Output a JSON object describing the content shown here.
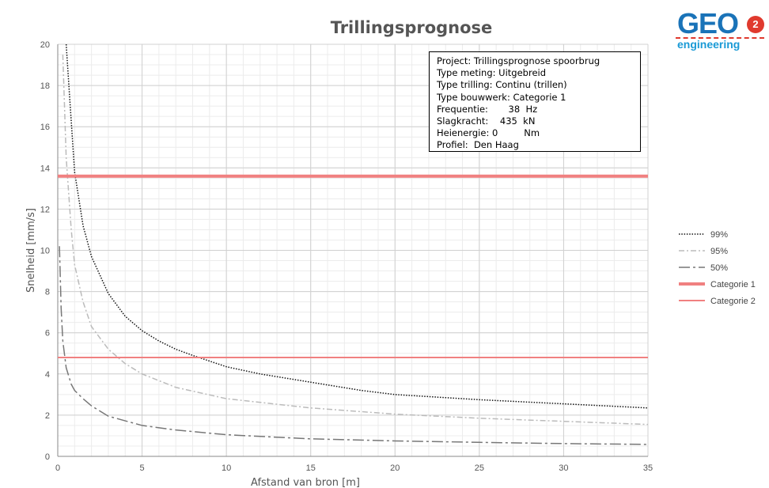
{
  "logo": {
    "brand": "GEO",
    "badge": "2",
    "sub": "engineering"
  },
  "info": {
    "rows": [
      {
        "label": "Project:",
        "value": "Trillingsprognose spoorbrug",
        "unit": ""
      },
      {
        "label": "Type meting:",
        "value": "Uitgebreid",
        "unit": ""
      },
      {
        "label": "Type trilling:",
        "value": "Continu (trillen)",
        "unit": ""
      },
      {
        "label": "Type bouwwerk:",
        "value": "Categorie 1",
        "unit": ""
      },
      {
        "label": "Frequentie:",
        "value": "38",
        "unit": "Hz"
      },
      {
        "label": "Slagkracht:",
        "value": "435",
        "unit": "kN"
      },
      {
        "label": "Heienergie:",
        "value": "0",
        "unit": "Nm"
      },
      {
        "label": "Profiel:",
        "value": "Den Haag",
        "unit": ""
      }
    ]
  },
  "chart_data": {
    "type": "line",
    "title": "Trillingsprognose",
    "xlabel": "Afstand van bron [m]",
    "ylabel": "Snelheid [mm/s]",
    "xlim": [
      0,
      35
    ],
    "ylim": [
      0,
      20
    ],
    "xticks": [
      0,
      5,
      10,
      15,
      20,
      25,
      30,
      35
    ],
    "yticks": [
      0,
      2,
      4,
      6,
      8,
      10,
      12,
      14,
      16,
      18,
      20
    ],
    "grid": true,
    "legend_position": "right",
    "series": [
      {
        "name": "99%",
        "color": "#111111",
        "dash": "dotted",
        "x": [
          0.5,
          0.7,
          1,
          1.5,
          2,
          3,
          4,
          5,
          6,
          7,
          8,
          10,
          12,
          15,
          18,
          20,
          25,
          30,
          35
        ],
        "y": [
          20,
          17.5,
          13.8,
          11.2,
          9.7,
          7.9,
          6.8,
          6.1,
          5.6,
          5.2,
          4.9,
          4.35,
          4.0,
          3.6,
          3.2,
          3.0,
          2.75,
          2.55,
          2.35
        ]
      },
      {
        "name": "95%",
        "color": "#bbbbbb",
        "dash": "dashdot",
        "x": [
          0.3,
          0.5,
          0.8,
          1,
          1.5,
          2,
          3,
          4,
          5,
          7,
          10,
          15,
          20,
          25,
          30,
          35
        ],
        "y": [
          19.5,
          14.5,
          11.0,
          9.3,
          7.5,
          6.3,
          5.2,
          4.5,
          4.0,
          3.35,
          2.8,
          2.35,
          2.05,
          1.85,
          1.7,
          1.55
        ]
      },
      {
        "name": "50%",
        "color": "#777777",
        "dash": "longdashdot",
        "x": [
          0.1,
          0.2,
          0.3,
          0.5,
          0.8,
          1,
          1.5,
          2,
          3,
          5,
          7,
          10,
          15,
          20,
          25,
          30,
          35
        ],
        "y": [
          10.2,
          7.2,
          5.6,
          4.3,
          3.5,
          3.2,
          2.8,
          2.45,
          1.95,
          1.5,
          1.28,
          1.05,
          0.85,
          0.75,
          0.68,
          0.62,
          0.58
        ]
      },
      {
        "name": "Categorie 1",
        "color": "#f08080",
        "dash": "solid",
        "width": 4,
        "x": [
          0,
          35
        ],
        "y": [
          13.6,
          13.6
        ]
      },
      {
        "name": "Categorie 2",
        "color": "#f08080",
        "dash": "solid",
        "width": 2,
        "x": [
          0,
          35
        ],
        "y": [
          4.8,
          4.8
        ]
      }
    ]
  }
}
